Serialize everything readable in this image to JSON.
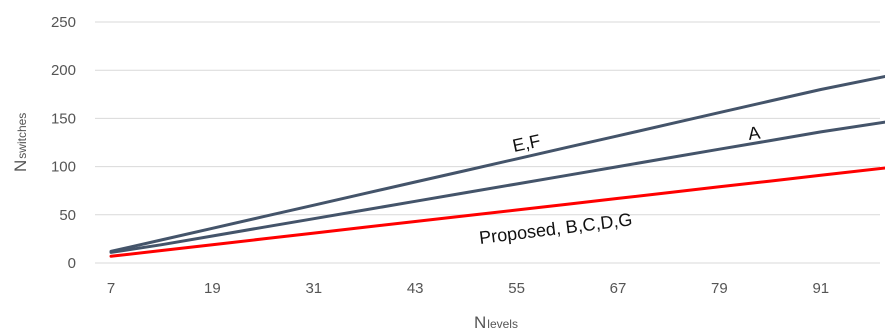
{
  "chart_data": {
    "type": "line",
    "xlabel_main": "N",
    "xlabel_sub": "levels",
    "ylabel_main": "N",
    "ylabel_sub": "switches",
    "x_ticks": [
      7,
      19,
      31,
      43,
      55,
      67,
      79,
      91
    ],
    "y_ticks": [
      0,
      50,
      100,
      150,
      200,
      250
    ],
    "xlim": [
      7,
      100
    ],
    "ylim": [
      0,
      250
    ],
    "grid": "horizontal",
    "x": [
      7,
      13,
      19,
      25,
      31,
      37,
      43,
      49,
      55,
      61,
      67,
      73,
      79,
      85,
      91,
      100
    ],
    "series": [
      {
        "name": "E,F",
        "color": "#44546a",
        "values": [
          12,
          24,
          36,
          48,
          60,
          72,
          84,
          96,
          108,
          120,
          132,
          144,
          156,
          168,
          180,
          196
        ]
      },
      {
        "name": "A",
        "color": "#44546a",
        "values": [
          11,
          19,
          28,
          37,
          46,
          55,
          64,
          73,
          82,
          91,
          100,
          109,
          118,
          127,
          136,
          148
        ]
      },
      {
        "name": "Proposed, B,C,D,G",
        "color": "#ff0000",
        "values": [
          7,
          13,
          19,
          25,
          31,
          37,
          43,
          49,
          55,
          61,
          67,
          73,
          79,
          85,
          91,
          100
        ]
      }
    ]
  }
}
